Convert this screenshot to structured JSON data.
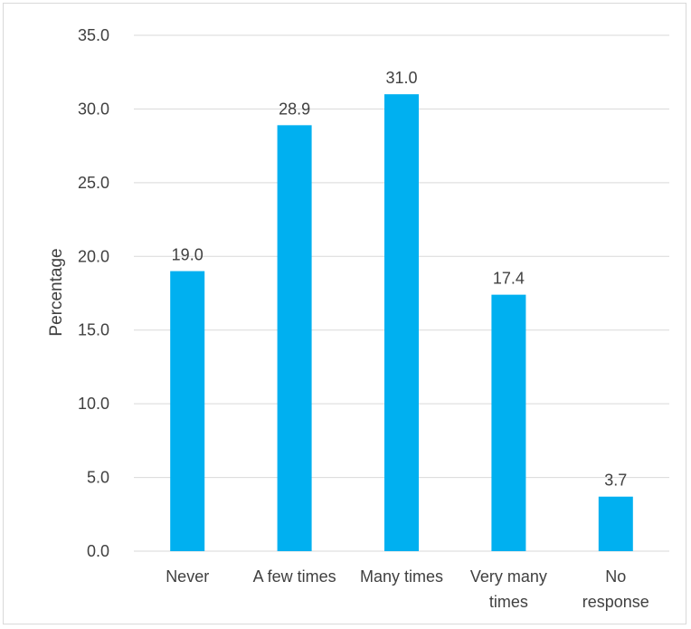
{
  "chart_data": {
    "type": "bar",
    "title": "",
    "xlabel": "",
    "ylabel": "Percentage",
    "categories": [
      [
        "Never"
      ],
      [
        "A few times"
      ],
      [
        "Many times"
      ],
      [
        "Very many",
        "times"
      ],
      [
        "No",
        "response"
      ]
    ],
    "values": [
      19.0,
      28.9,
      31.0,
      17.4,
      3.7
    ],
    "value_labels": [
      "19.0",
      "28.9",
      "31.0",
      "17.4",
      "3.7"
    ],
    "ylim": [
      0,
      35
    ],
    "y_ticks": [
      "0.0",
      "5.0",
      "10.0",
      "15.0",
      "20.0",
      "25.0",
      "30.0",
      "35.0"
    ],
    "y_tick_values": [
      0,
      5,
      10,
      15,
      20,
      25,
      30,
      35
    ],
    "grid": true,
    "legend": "none",
    "bar_color": "#00b0f0",
    "grid_color": "#d9d9d9"
  }
}
